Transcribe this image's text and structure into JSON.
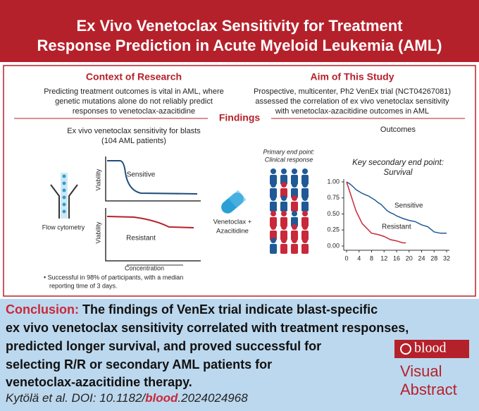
{
  "header": {
    "title": [
      "Ex Vivo Venetoclax Sensitivity for Treatment",
      "Response Prediction in Acute Myeloid Leukemia (AML)"
    ]
  },
  "context": {
    "heading": "Context of Research",
    "lines": [
      "Predicting treatment outcomes is vital in AML, where",
      "genetic mutations alone do not reliably predict",
      "responses to venetoclax-azacitidine"
    ]
  },
  "aim": {
    "heading": "Aim of This Study",
    "lines": [
      "Prospective, multicenter, Ph2 VenEx trial (NCT04267081)",
      "assessed the correlation of ex vivo venetoclax sensitivity",
      "with venetoclax-azacitidine outcomes in AML"
    ]
  },
  "findings": {
    "heading": "Findings",
    "left": {
      "title": [
        "Ex vivo venetoclax sensitivity for blasts",
        "(104 AML patients)"
      ],
      "flow_label": "Flow cytometry",
      "viability": "Viability",
      "sensitive": "Sensitive",
      "resistant": "Resistant",
      "concentration": "Concentration",
      "note": [
        "• Successful in 98% of participants, with a median",
        "reporting time of 3 days."
      ]
    },
    "drug": [
      "Venetoclax +",
      "Azacitidine"
    ],
    "outcomes": "Outcomes",
    "primary": [
      "Primary end point:",
      "Clinical response"
    ]
  },
  "chart_data": {
    "type": "line",
    "title": [
      "Key secondary end point:",
      "Survival"
    ],
    "xlim": [
      0,
      32
    ],
    "xticks": [
      0,
      4,
      8,
      12,
      16,
      20,
      24,
      28,
      32
    ],
    "ylim": [
      0,
      1
    ],
    "yticks": [
      {
        "value": 0,
        "label": "0.00"
      },
      {
        "value": 0.25,
        "label": "0.25"
      },
      {
        "value": 0.5,
        "label": "0.50"
      },
      {
        "value": 0.75,
        "label": "0.75"
      },
      {
        "value": 1,
        "label": "1.00"
      }
    ],
    "series": [
      {
        "name": "Sensitive",
        "color": "#1f5a96",
        "x": [
          0,
          1,
          2,
          3,
          4,
          5,
          6,
          7,
          8,
          9,
          10,
          11,
          12,
          13,
          14,
          15,
          16,
          18,
          20,
          22,
          24,
          26,
          28,
          30,
          32
        ],
        "values": [
          1,
          0.97,
          0.93,
          0.88,
          0.85,
          0.82,
          0.8,
          0.78,
          0.75,
          0.72,
          0.68,
          0.65,
          0.6,
          0.55,
          0.52,
          0.5,
          0.47,
          0.43,
          0.4,
          0.38,
          0.33,
          0.3,
          0.22,
          0.2,
          0.2
        ]
      },
      {
        "name": "Resistant",
        "color": "#c9283a",
        "x": [
          0,
          1,
          2,
          3,
          4,
          5,
          6,
          7,
          8,
          10,
          12,
          14,
          16,
          18,
          19
        ],
        "values": [
          1,
          0.85,
          0.7,
          0.55,
          0.45,
          0.35,
          0.3,
          0.25,
          0.2,
          0.18,
          0.15,
          0.1,
          0.08,
          0.05,
          0.05
        ]
      }
    ]
  },
  "conclusion": {
    "label": "Conclusion:",
    "lines": [
      " The findings of VenEx trial indicate blast-specific",
      "ex vivo venetoclax sensitivity correlated with treatment responses,",
      "predicted longer survival, and proved successful for",
      "selecting R/R or secondary AML patients for",
      "venetoclax-azacitidine therapy."
    ]
  },
  "citation": {
    "prefix": "Kytölä et al. DOI: 10.1182/",
    "journal": "blood",
    "suffix": ".2024024968"
  },
  "logo": {
    "brand": "blood",
    "lines": [
      "Visual",
      "Abstract"
    ]
  }
}
